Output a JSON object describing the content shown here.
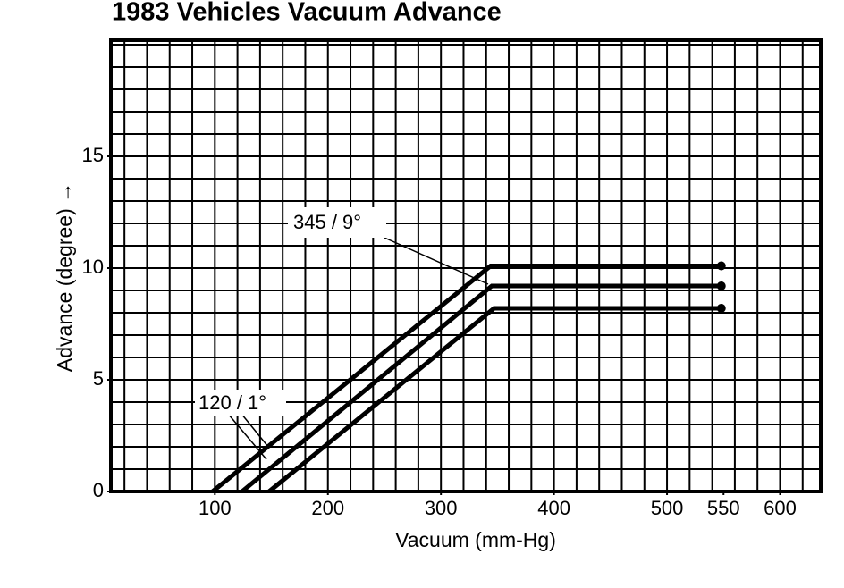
{
  "chart_data": {
    "type": "line",
    "title": "1983 Vehicles Vacuum Advance",
    "x_label": "Vacuum (mm-Hg)",
    "y_label": "Advance (degree) →",
    "xlim": [
      8,
      636
    ],
    "ylim": [
      0,
      20.2
    ],
    "xticks": [
      100,
      200,
      300,
      400,
      500,
      550,
      600
    ],
    "yticks": [
      0,
      5,
      10,
      15
    ],
    "xgrid": [
      20,
      40,
      60,
      80,
      100,
      120,
      140,
      160,
      180,
      200,
      220,
      240,
      260,
      280,
      300,
      320,
      340,
      360,
      380,
      400,
      420,
      440,
      460,
      480,
      500,
      520,
      540,
      560,
      580,
      600,
      620
    ],
    "ygrid": [
      1,
      2,
      3,
      4,
      5,
      6,
      7,
      8,
      9,
      10,
      11,
      12,
      13,
      14,
      15,
      16,
      17,
      18,
      19,
      20
    ],
    "grid": true,
    "series": [
      {
        "color": "#000000",
        "x": [
          98,
          344,
          548
        ],
        "values": [
          0,
          10.1,
          10.1
        ]
      },
      {
        "color": "#000000",
        "x": [
          124,
          345,
          548
        ],
        "values": [
          0,
          9.2,
          9.2
        ]
      },
      {
        "color": "#000000",
        "x": [
          148,
          347,
          548
        ],
        "values": [
          0,
          8.2,
          8.2
        ]
      }
    ],
    "annotations": [
      "345 / 9°",
      "120 / 1°"
    ]
  }
}
